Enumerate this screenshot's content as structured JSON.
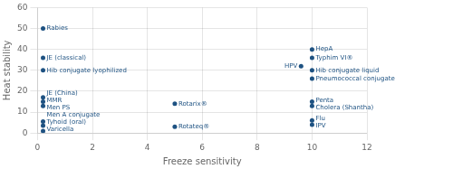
{
  "chart_data": {
    "type": "scatter",
    "xlabel": "Freeze sensitivity",
    "ylabel": "Heat stability",
    "xlim": [
      0,
      12
    ],
    "ylim": [
      0,
      60
    ],
    "xticks": [
      0,
      2,
      4,
      6,
      8,
      10,
      12
    ],
    "yticks": [
      0,
      10,
      20,
      30,
      40,
      50,
      60
    ],
    "grid": true,
    "color": "#1e5282",
    "points": [
      {
        "x": 0.2,
        "y": 50,
        "label": "Rabies"
      },
      {
        "x": 0.2,
        "y": 36,
        "label": "JE (classical)"
      },
      {
        "x": 0.2,
        "y": 30,
        "label": "Hib conjugate lyophilized"
      },
      {
        "x": 0.2,
        "y": 17,
        "label": "JE (China)"
      },
      {
        "x": 0.2,
        "y": 15,
        "label": "MMR"
      },
      {
        "x": 0.2,
        "y": 13,
        "label": "Men PS"
      },
      {
        "x": 0.2,
        "y": 5.5,
        "label": "Men A conjugate"
      },
      {
        "x": 0.2,
        "y": 3.5,
        "label": "Tyhoid (oral)"
      },
      {
        "x": 0.2,
        "y": 1.0,
        "label": "Varicella"
      },
      {
        "x": 5.0,
        "y": 14,
        "label": "Rotarix®"
      },
      {
        "x": 5.0,
        "y": 3,
        "label": "Rotateq®"
      },
      {
        "x": 10.0,
        "y": 40,
        "label": "HepA"
      },
      {
        "x": 10.0,
        "y": 36,
        "label": "Typhim VI®"
      },
      {
        "x": 9.6,
        "y": 32,
        "label": "HPV"
      },
      {
        "x": 10.0,
        "y": 30,
        "label": "Hib conjugate liquid"
      },
      {
        "x": 10.0,
        "y": 26,
        "label": "Pneumococcal conjugate"
      },
      {
        "x": 10.0,
        "y": 15,
        "label": "Penta"
      },
      {
        "x": 10.0,
        "y": 13,
        "label": "Cholera (Shantha)"
      },
      {
        "x": 10.0,
        "y": 6,
        "label": "Flu"
      },
      {
        "x": 10.0,
        "y": 4,
        "label": "IPV"
      }
    ]
  }
}
